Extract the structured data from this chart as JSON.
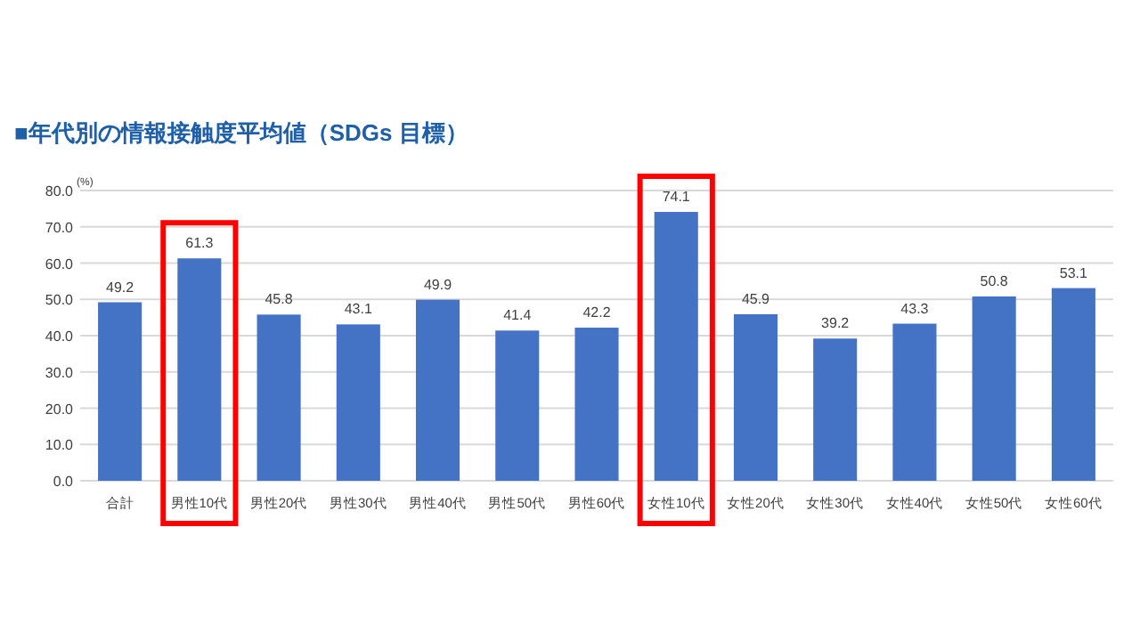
{
  "chart_data": {
    "type": "bar",
    "title": "■年代別の情報接触度平均値（SDGs 目標）",
    "ylabel": "(%)",
    "categories": [
      "合計",
      "男性10代",
      "男性20代",
      "男性30代",
      "男性40代",
      "男性50代",
      "男性60代",
      "女性10代",
      "女性20代",
      "女性30代",
      "女性40代",
      "女性50代",
      "女性60代"
    ],
    "values": [
      49.2,
      61.3,
      45.8,
      43.1,
      49.9,
      41.4,
      42.2,
      74.1,
      45.9,
      39.2,
      43.3,
      50.8,
      53.1
    ],
    "color": "#4472c4",
    "ylim": [
      0,
      80
    ],
    "yticks": [
      {
        "value": 0,
        "label": "0.0"
      },
      {
        "value": 10,
        "label": "10.0"
      },
      {
        "value": 20,
        "label": "20.0"
      },
      {
        "value": 30,
        "label": "30.0"
      },
      {
        "value": 40,
        "label": "40.0"
      },
      {
        "value": 50,
        "label": "50.0"
      },
      {
        "value": 60,
        "label": "60.0"
      },
      {
        "value": 70,
        "label": "70.0"
      },
      {
        "value": 80,
        "label": "80.0"
      }
    ],
    "grid": "y",
    "data_labels": true
  }
}
